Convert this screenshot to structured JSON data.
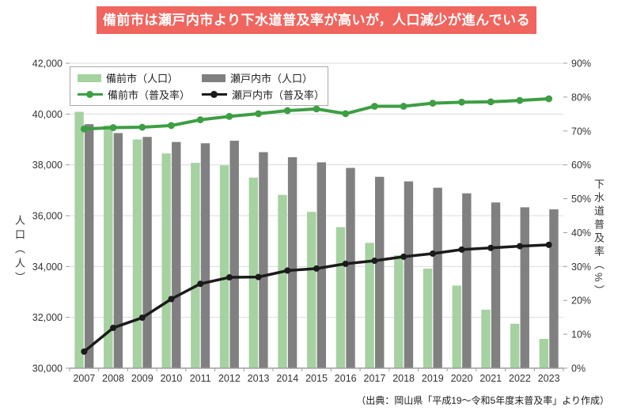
{
  "banner": {
    "text": "備前市は瀬戸内市より下水道普及率が高いが，人口減少が進んでいる",
    "bg": "#f0655e",
    "text_color": "#ffffff"
  },
  "legend": {
    "items": [
      {
        "label": "備前市（人口）",
        "type": "bar",
        "color": "#a6d1a1"
      },
      {
        "label": "瀬戸内市（人口）",
        "type": "bar",
        "color": "#808080"
      },
      {
        "label": "備前市（普及率）",
        "type": "line",
        "color": "#3d9e43"
      },
      {
        "label": "瀬戸内市（普及率）",
        "type": "line",
        "color": "#1b1b1b"
      }
    ]
  },
  "chart_data": {
    "type": "bar+line combo",
    "categories": [
      "2007",
      "2008",
      "2009",
      "2010",
      "2011",
      "2012",
      "2013",
      "2014",
      "2015",
      "2016",
      "2017",
      "2018",
      "2019",
      "2020",
      "2021",
      "2022",
      "2023"
    ],
    "series": [
      {
        "name": "備前市（人口）",
        "type": "bar",
        "axis": "left",
        "color": "#a6d1a1",
        "values": [
          40090,
          39550,
          39000,
          38450,
          38080,
          37980,
          37500,
          36820,
          36150,
          35550,
          34930,
          34440,
          33920,
          33250,
          32300,
          31750,
          31150
        ]
      },
      {
        "name": "瀬戸内市（人口）",
        "type": "bar",
        "axis": "left",
        "color": "#808080",
        "values": [
          39600,
          39250,
          39100,
          38900,
          38850,
          38950,
          38500,
          38300,
          38100,
          37880,
          37530,
          37350,
          37100,
          36880,
          36520,
          36330,
          36250
        ]
      },
      {
        "name": "備前市（普及率）",
        "type": "line",
        "axis": "right",
        "color": "#3d9e43",
        "values": [
          70.6,
          71.0,
          71.1,
          71.6,
          73.3,
          74.3,
          75.1,
          76.0,
          76.5,
          75.1,
          77.3,
          77.3,
          78.2,
          78.5,
          78.6,
          79.0,
          79.5
        ]
      },
      {
        "name": "瀬戸内市（普及率）",
        "type": "line",
        "axis": "right",
        "color": "#1b1b1b",
        "values": [
          4.9,
          11.9,
          14.9,
          20.4,
          24.9,
          26.8,
          26.9,
          28.8,
          29.4,
          30.8,
          31.7,
          32.9,
          33.8,
          35.0,
          35.5,
          36.0,
          36.4
        ]
      }
    ],
    "left_axis": {
      "label": "人口（人）",
      "min": 30000,
      "max": 42000,
      "step": 2000
    },
    "right_axis": {
      "label": "下水道普及率（%）",
      "min": 0,
      "max": 90,
      "step": 10,
      "suffix": "%"
    },
    "grid": true,
    "legend_position": "top-left"
  },
  "footnote": "（出典：岡山県「平成19～令和5年度末普及率」より作成）"
}
